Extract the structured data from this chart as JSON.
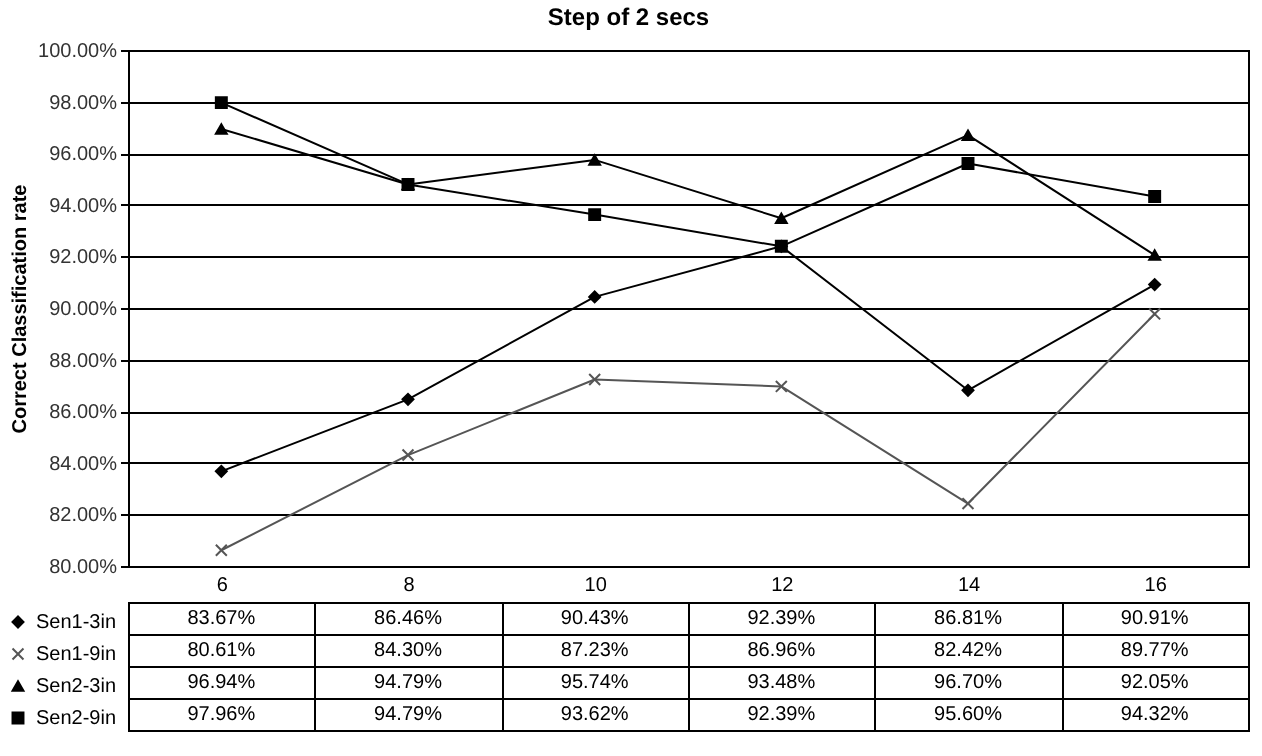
{
  "chart_data": {
    "type": "line",
    "title": "Step of 2 secs",
    "ylabel": "Correct Classification rate",
    "categories": [
      "6",
      "8",
      "10",
      "12",
      "14",
      "16"
    ],
    "ylim": [
      80,
      100
    ],
    "yticks": [
      {
        "value": 80,
        "label": "80.00%"
      },
      {
        "value": 82,
        "label": "82.00%"
      },
      {
        "value": 84,
        "label": "84.00%"
      },
      {
        "value": 86,
        "label": "86.00%"
      },
      {
        "value": 88,
        "label": "88.00%"
      },
      {
        "value": 90,
        "label": "90.00%"
      },
      {
        "value": 92,
        "label": "92.00%"
      },
      {
        "value": 94,
        "label": "94.00%"
      },
      {
        "value": 96,
        "label": "96.00%"
      },
      {
        "value": 98,
        "label": "98.00%"
      },
      {
        "value": 100,
        "label": "100.00%"
      }
    ],
    "grid": "y",
    "legend": "bottom left",
    "series": [
      {
        "name": "Sen1-3in",
        "color": "#000000",
        "marker": "diamond",
        "values": [
          83.67,
          86.46,
          90.43,
          92.39,
          86.81,
          90.91
        ],
        "value_labels": [
          "83.67%",
          "86.46%",
          "90.43%",
          "92.39%",
          "86.81%",
          "90.91%"
        ]
      },
      {
        "name": "Sen1-9in",
        "color": "#555555",
        "marker": "cross",
        "values": [
          80.61,
          84.3,
          87.23,
          86.96,
          82.42,
          89.77
        ],
        "value_labels": [
          "80.61%",
          "84.30%",
          "87.23%",
          "86.96%",
          "82.42%",
          "89.77%"
        ]
      },
      {
        "name": "Sen2-3in",
        "color": "#000000",
        "marker": "triangle",
        "values": [
          96.94,
          94.79,
          95.74,
          93.48,
          96.7,
          92.05
        ],
        "value_labels": [
          "96.94%",
          "94.79%",
          "95.74%",
          "93.48%",
          "96.70%",
          "92.05%"
        ]
      },
      {
        "name": "Sen2-9in",
        "color": "#000000",
        "marker": "square",
        "values": [
          97.96,
          94.79,
          93.62,
          92.39,
          95.6,
          94.32
        ],
        "value_labels": [
          "97.96%",
          "94.79%",
          "93.62%",
          "92.39%",
          "95.60%",
          "94.32%"
        ]
      }
    ]
  }
}
